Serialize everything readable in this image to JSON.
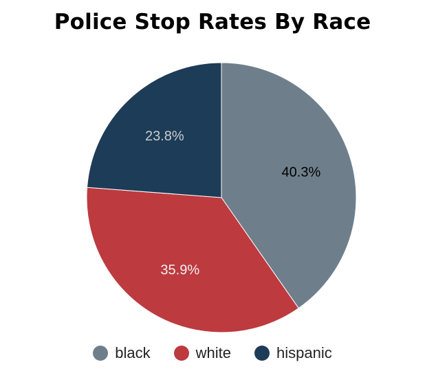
{
  "chart_data": {
    "type": "pie",
    "title": "Police Stop Rates By Race",
    "categories": [
      "black",
      "white",
      "hispanic"
    ],
    "values": [
      40.3,
      35.9,
      23.8
    ],
    "labels": [
      "40.3%",
      "35.9%",
      "23.8%"
    ],
    "colors": [
      "#6e7f8b",
      "#bd3a3f",
      "#1d3c57"
    ],
    "label_colors": [
      "#000000",
      "#f2f2f2",
      "#c8ccd0"
    ],
    "start_angle": "12 o'clock",
    "direction": "clockwise",
    "legend_position": "bottom-center"
  }
}
